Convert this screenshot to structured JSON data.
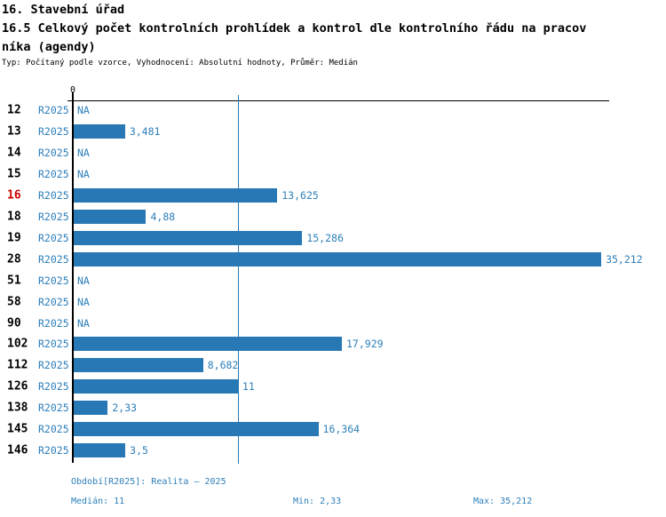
{
  "header": {
    "title": "16. Stavební úřad",
    "subtitle_line1": "16.5 Celkový počet kontrolních prohlídek a kontrol dle kontrolního řádu na pracov",
    "subtitle_line2": "níka (agendy)",
    "meta": "Typ: Počítaný podle vzorce, Vyhodnocení: Absolutní hodnoty, Průměr: Medián"
  },
  "axis": {
    "zero_label": "0"
  },
  "rows": [
    {
      "id": "12",
      "period": "R2025",
      "label": "NA",
      "value": null,
      "highlight": false
    },
    {
      "id": "13",
      "period": "R2025",
      "label": "3,481",
      "value": 3.481,
      "highlight": false
    },
    {
      "id": "14",
      "period": "R2025",
      "label": "NA",
      "value": null,
      "highlight": false
    },
    {
      "id": "15",
      "period": "R2025",
      "label": "NA",
      "value": null,
      "highlight": false
    },
    {
      "id": "16",
      "period": "R2025",
      "label": "13,625",
      "value": 13.625,
      "highlight": true
    },
    {
      "id": "18",
      "period": "R2025",
      "label": "4,88",
      "value": 4.88,
      "highlight": false
    },
    {
      "id": "19",
      "period": "R2025",
      "label": "15,286",
      "value": 15.286,
      "highlight": false
    },
    {
      "id": "28",
      "period": "R2025",
      "label": "35,212",
      "value": 35.212,
      "highlight": false
    },
    {
      "id": "51",
      "period": "R2025",
      "label": "NA",
      "value": null,
      "highlight": false
    },
    {
      "id": "58",
      "period": "R2025",
      "label": "NA",
      "value": null,
      "highlight": false
    },
    {
      "id": "90",
      "period": "R2025",
      "label": "NA",
      "value": null,
      "highlight": false
    },
    {
      "id": "102",
      "period": "R2025",
      "label": "17,929",
      "value": 17.929,
      "highlight": false
    },
    {
      "id": "112",
      "period": "R2025",
      "label": "8,682",
      "value": 8.682,
      "highlight": false
    },
    {
      "id": "126",
      "period": "R2025",
      "label": "11",
      "value": 11,
      "highlight": false
    },
    {
      "id": "138",
      "period": "R2025",
      "label": "2,33",
      "value": 2.33,
      "highlight": false
    },
    {
      "id": "145",
      "period": "R2025",
      "label": "16,364",
      "value": 16.364,
      "highlight": false
    },
    {
      "id": "146",
      "period": "R2025",
      "label": "3,5",
      "value": 3.5,
      "highlight": false
    }
  ],
  "median_value": 11,
  "footer": {
    "period": "Období[R2025]: Realita – 2025",
    "median": "Medián: 11",
    "min": "Min: 2,33",
    "max": "Max: 35,212"
  },
  "colors": {
    "bar": "#2878b5",
    "text_blue": "#2d7fba",
    "highlight_red": "#cc0000",
    "axis_black": "#000000"
  },
  "chart_data": {
    "type": "bar",
    "orientation": "horizontal",
    "title": "16.5 Celkový počet kontrolních prohlídek a kontrol dle kontrolního řádu na pracovníka (agendy)",
    "section": "16. Stavební úřad",
    "categories": [
      "12",
      "13",
      "14",
      "15",
      "16",
      "18",
      "19",
      "28",
      "51",
      "58",
      "90",
      "102",
      "112",
      "126",
      "138",
      "145",
      "146"
    ],
    "series": [
      {
        "name": "R2025",
        "values": [
          null,
          3.481,
          null,
          null,
          13.625,
          4.88,
          15.286,
          35.212,
          null,
          null,
          null,
          17.929,
          8.682,
          11,
          2.33,
          16.364,
          3.5
        ]
      }
    ],
    "na_label": "NA",
    "xlim": [
      0,
      35.5
    ],
    "grid": false,
    "reference_line": {
      "label": "Medián",
      "value": 11
    },
    "stats": {
      "median": 11,
      "min": 2.33,
      "max": 35.212
    },
    "highlighted_category": "16"
  }
}
